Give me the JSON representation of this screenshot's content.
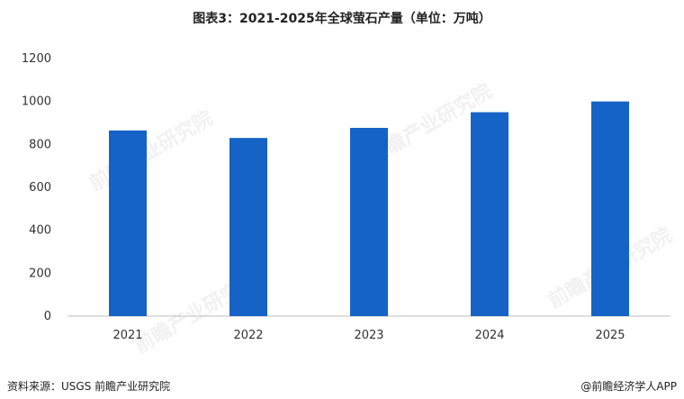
{
  "title": "图表3：2021-2025年全球萤石产量（单位：万吨）",
  "source": "资料来源：USGS  前瞻产业研究院",
  "credit": "@前瞻经济学人APP",
  "watermark": "前瞻产业研究院",
  "colors": {
    "bar": "#1663C7",
    "axis": "#bfbfbf"
  },
  "chart_data": {
    "type": "bar",
    "categories": [
      "2021",
      "2022",
      "2023",
      "2024",
      "2025"
    ],
    "values": [
      865,
      830,
      877,
      950,
      1000
    ],
    "ylim": [
      0,
      1200
    ],
    "yticks": [
      0,
      200,
      400,
      600,
      800,
      1000,
      1200
    ],
    "grid": false,
    "xlabel": "",
    "ylabel": ""
  }
}
